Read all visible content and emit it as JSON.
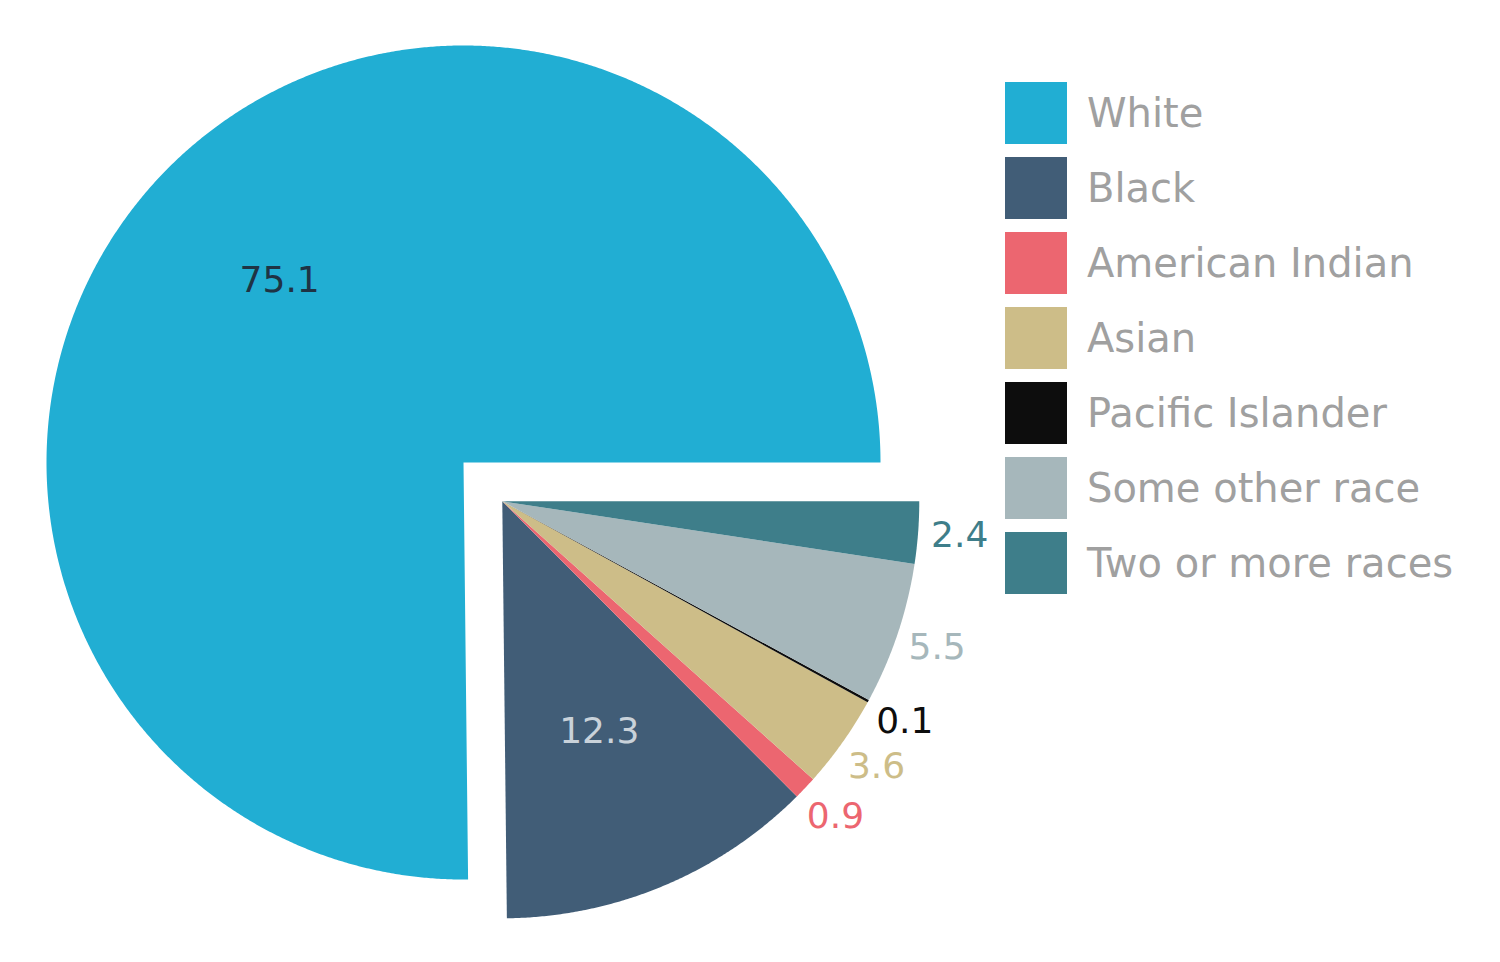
{
  "chart_data": {
    "type": "pie",
    "categories": [
      "White",
      "Black",
      "American Indian",
      "Asian",
      "Pacific Islander",
      "Some other race",
      "Two or more races"
    ],
    "values": [
      75.1,
      12.3,
      0.9,
      3.6,
      0.1,
      5.5,
      2.4
    ],
    "colors": [
      "#21aed3",
      "#415d77",
      "#ec6670",
      "#cdbd88",
      "#0d0d0d",
      "#a6b7bb",
      "#3e7e8a"
    ],
    "data_labels": true,
    "legend": "right"
  }
}
